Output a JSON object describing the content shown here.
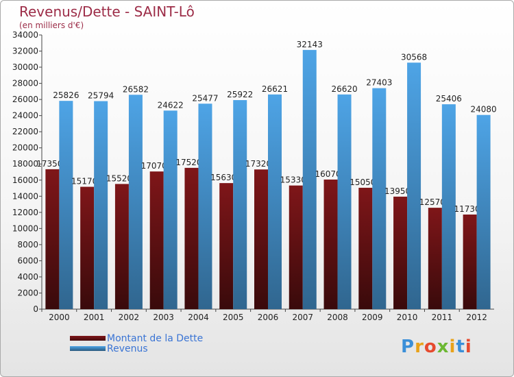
{
  "title": "Revenus/Dette - SAINT-Lô",
  "subtitle": "(en milliers d'€)",
  "logo_text": "Proxiti",
  "colors": {
    "series_dette": "#7f1619",
    "series_revenus": "#4ea4e6",
    "title": "#9c2c47",
    "legend_text": "#3a74d4"
  },
  "chart_data": {
    "type": "bar",
    "title": "Revenus/Dette - SAINT-Lô",
    "subtitle": "(en milliers d'€)",
    "xlabel": "",
    "ylabel": "",
    "ylim": [
      0,
      34000
    ],
    "yticks": [
      0,
      2000,
      4000,
      6000,
      8000,
      10000,
      12000,
      14000,
      16000,
      18000,
      20000,
      22000,
      24000,
      26000,
      28000,
      30000,
      32000,
      34000
    ],
    "grid": false,
    "legend_position": "bottom-left",
    "categories": [
      "2000",
      "2001",
      "2002",
      "2003",
      "2004",
      "2005",
      "2006",
      "2007",
      "2008",
      "2009",
      "2010",
      "2011",
      "2012"
    ],
    "series": [
      {
        "name": "Montant de la Dette",
        "color": "#7f1619",
        "values": [
          17350,
          15170,
          15520,
          17070,
          17520,
          15630,
          17320,
          15330,
          16070,
          15050,
          13950,
          12570,
          11730
        ],
        "labels": [
          "17350",
          "15170",
          "15520",
          "17070",
          "17520",
          "15630",
          "17320",
          "15330",
          "16070",
          "15050",
          "13950",
          "12570",
          "11730"
        ]
      },
      {
        "name": "Revenus",
        "color": "#4ea4e6",
        "values": [
          25826,
          25794,
          26582,
          24622,
          25477,
          25922,
          26621,
          32143,
          26620,
          27403,
          30568,
          25406,
          24080
        ],
        "labels": [
          "25826",
          "25794",
          "26582",
          "24622",
          "25477",
          "25922",
          "26621",
          "32143",
          "26620",
          "27403",
          "30568",
          "25406",
          "24080"
        ]
      }
    ]
  }
}
